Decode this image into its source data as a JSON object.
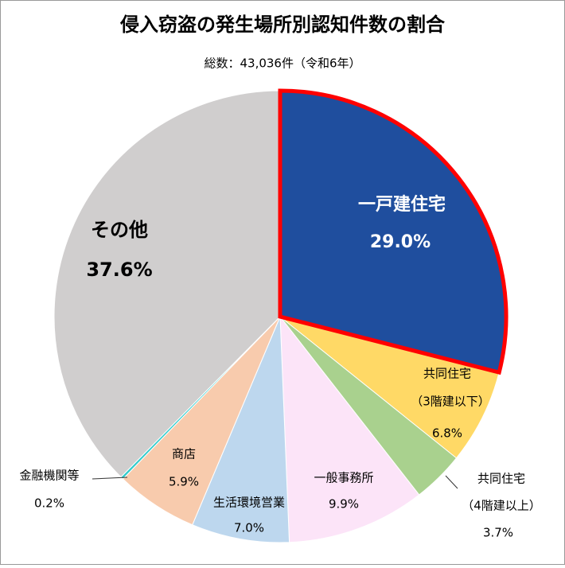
{
  "chart_data": {
    "type": "pie",
    "title": "侵入窃盗の発生場所別認知件数の割合",
    "subtitle": "総数：43,036件（令和6年）",
    "categories": [
      [
        "一戸建住宅"
      ],
      [
        "共同住宅",
        "（3階建以下）"
      ],
      [
        "共同住宅",
        "（4階建以上）"
      ],
      [
        "一般事務所"
      ],
      [
        "生活環境営業"
      ],
      [
        "商店"
      ],
      [
        "金融機関等"
      ],
      [
        "その他"
      ]
    ],
    "values": [
      29.0,
      6.8,
      3.7,
      9.9,
      7.0,
      5.9,
      0.2,
      37.6
    ],
    "value_labels": [
      "29.0%",
      "6.8%",
      "3.7%",
      "9.9%",
      "7.0%",
      "5.9%",
      "0.2%",
      "37.6%"
    ],
    "colors": [
      "#1f4e9e",
      "#ffd966",
      "#a9d18e",
      "#fce4f8",
      "#bdd7ee",
      "#f8cbad",
      "#33cccc",
      "#d0cece"
    ],
    "highlight": 0,
    "highlight_color": "#ff0000"
  }
}
